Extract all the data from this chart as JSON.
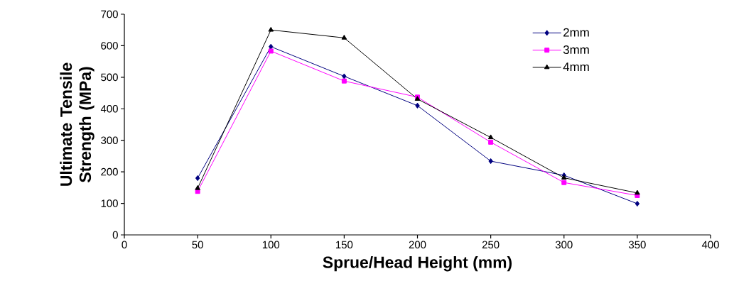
{
  "chart_data": {
    "type": "line",
    "xlabel": "Sprue/Head Height (mm)",
    "ylabel": "Ultimate Tensile Strength (MPa)",
    "x": [
      50,
      100,
      150,
      200,
      250,
      300,
      350
    ],
    "series": [
      {
        "name": "2mm",
        "color": "#000080",
        "marker": "diamond",
        "values": [
          180,
          597,
          503,
          410,
          234,
          189,
          99
        ]
      },
      {
        "name": "3mm",
        "color": "#ff00ff",
        "marker": "square",
        "values": [
          138,
          583,
          488,
          437,
          294,
          166,
          125
        ]
      },
      {
        "name": "4mm",
        "color": "#000000",
        "marker": "triangle",
        "values": [
          148,
          650,
          625,
          431,
          309,
          181,
          133
        ]
      }
    ],
    "xlim": [
      0,
      400
    ],
    "xticks": [
      0,
      50,
      100,
      150,
      200,
      250,
      300,
      350,
      400
    ],
    "ylim": [
      0,
      700
    ],
    "yticks": [
      0,
      100,
      200,
      300,
      400,
      500,
      600,
      700
    ],
    "grid": false,
    "legend": "top right",
    "line_style": "solid"
  }
}
